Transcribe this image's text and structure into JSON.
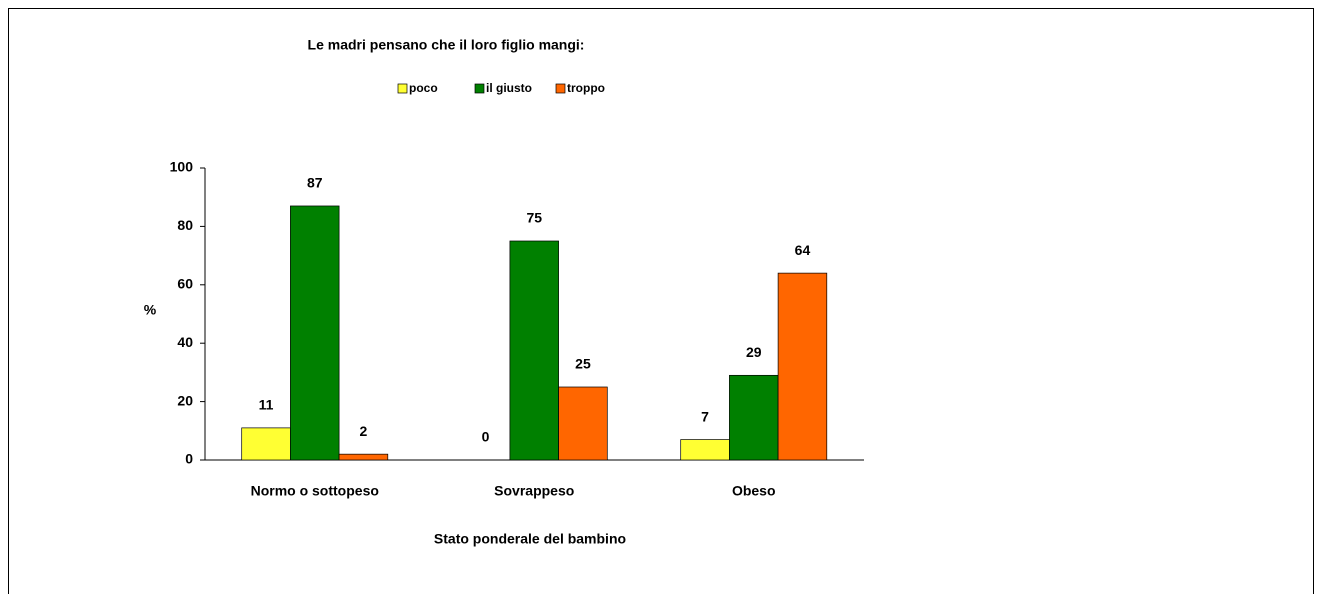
{
  "chart_data": {
    "type": "bar",
    "title": "Le madri pensano che il loro figlio mangi:",
    "x_label": "Stato ponderale del bambino",
    "y_label": "%",
    "categories": [
      "Normo o sottopeso",
      "Sovrappeso",
      "Obeso"
    ],
    "series": [
      {
        "name": "poco",
        "color": "#ffff33",
        "values": [
          11,
          0,
          7
        ]
      },
      {
        "name": "il giusto",
        "color": "#008000",
        "values": [
          87,
          75,
          29
        ]
      },
      {
        "name": "troppo",
        "color": "#ff6600",
        "values": [
          2,
          25,
          64
        ]
      }
    ],
    "ylim": [
      0,
      100
    ],
    "yticks": [
      0,
      20,
      40,
      60,
      80,
      100
    ],
    "grid": false,
    "legend": "top"
  }
}
